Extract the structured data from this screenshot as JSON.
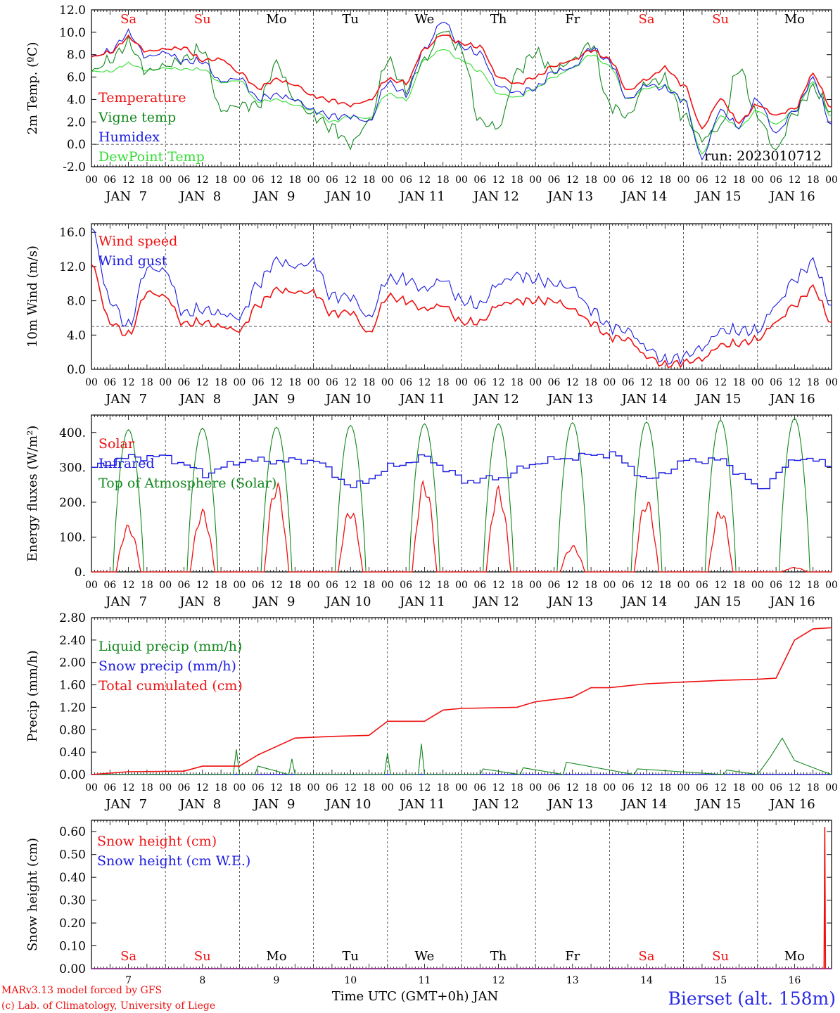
{
  "run_label": "run: 2023010712",
  "footer": {
    "model_line": "MARv3.13 model forced by GFS",
    "credit_line": "(c) Lab. of Climatology, University of Liege",
    "time_label": "Time UTC (GMT+0h) JAN",
    "station": "Bierset (alt. 158m)"
  },
  "colors": {
    "red": "#ee1111",
    "dark_green": "#11881c",
    "blue": "#1a1ae0",
    "light_green": "#33dd33",
    "weekend": "#ee1111",
    "weekday": "#000000"
  },
  "days": [
    "Sa",
    "Su",
    "Mo",
    "Tu",
    "We",
    "Th",
    "Fr",
    "Sa",
    "Su",
    "Mo"
  ],
  "weekend_flags": [
    true,
    true,
    false,
    false,
    false,
    false,
    false,
    true,
    true,
    false
  ],
  "date_labels": [
    "JAN  7",
    "JAN  8",
    "JAN  9",
    "JAN 10",
    "JAN 11",
    "JAN 12",
    "JAN 13",
    "JAN 14",
    "JAN 15",
    "JAN 16"
  ],
  "day_numbers": [
    "7",
    "8",
    "9",
    "10",
    "11",
    "12",
    "13",
    "14",
    "15",
    "16"
  ],
  "hour_ticks": [
    "00",
    "06",
    "12",
    "18"
  ],
  "chart_data": [
    {
      "type": "line",
      "ylabel": "2m Temp. (ºC)",
      "ylim": [
        -2,
        12
      ],
      "yticks": [
        "-2.0",
        "0.0",
        "2.0",
        "4.0",
        "6.0",
        "8.0",
        "10.0",
        "12.0"
      ],
      "reference_line": 0,
      "x_hours": [
        0,
        6,
        12,
        18,
        24,
        30,
        36,
        42,
        48,
        54,
        60,
        66,
        72,
        78,
        84,
        90,
        96,
        102,
        108,
        114,
        120,
        126,
        132,
        138,
        144,
        150,
        156,
        162,
        168,
        174,
        180,
        186,
        192,
        198,
        204,
        210,
        216,
        222,
        228,
        234,
        240
      ],
      "series": [
        {
          "name": "Temperature",
          "color": "red",
          "values": [
            7.8,
            8.2,
            9.5,
            8.3,
            8.5,
            8.6,
            7.5,
            7.6,
            6.4,
            5.0,
            5.8,
            5.3,
            4.3,
            3.9,
            3.5,
            3.9,
            5.8,
            5.5,
            8.5,
            9.8,
            9.0,
            8.7,
            6.0,
            5.4,
            6.0,
            7.0,
            7.5,
            8.4,
            7.6,
            4.8,
            5.8,
            6.8,
            5.3,
            1.5,
            4.0,
            2.0,
            3.5,
            2.6,
            3.2,
            6.2,
            3.3
          ]
        },
        {
          "name": "Vigne temp",
          "color": "dark_green",
          "values": [
            6.5,
            7.5,
            9.0,
            6.5,
            7.0,
            7.6,
            8.5,
            3.0,
            3.5,
            3.5,
            7.2,
            4.0,
            2.5,
            1.5,
            0.0,
            2.0,
            7.5,
            5.0,
            7.5,
            10.2,
            8.4,
            2.0,
            1.5,
            6.5,
            8.2,
            6.5,
            7.5,
            9.0,
            3.5,
            2.5,
            5.5,
            5.8,
            2.5,
            0.5,
            1.5,
            6.8,
            2.5,
            -0.5,
            2.8,
            5.0,
            3.0
          ]
        },
        {
          "name": "Humidex",
          "color": "blue",
          "values": [
            7.8,
            8.3,
            9.9,
            7.8,
            8.2,
            7.4,
            7.4,
            5.6,
            5.9,
            4.1,
            4.4,
            4.0,
            3.0,
            2.5,
            2.5,
            2.0,
            5.5,
            4.5,
            8.5,
            11.0,
            8.7,
            8.1,
            5.2,
            4.6,
            5.0,
            6.5,
            6.8,
            8.6,
            7.4,
            4.0,
            5.3,
            5.0,
            4.0,
            -1.2,
            3.0,
            1.6,
            4.0,
            1.0,
            3.0,
            5.8,
            1.8
          ]
        },
        {
          "name": "DewPoint Temp",
          "color": "light_green",
          "values": [
            6.5,
            6.5,
            7.2,
            6.6,
            6.8,
            6.7,
            6.7,
            5.5,
            5.7,
            3.8,
            4.0,
            3.5,
            3.0,
            2.0,
            2.5,
            2.3,
            4.5,
            4.0,
            7.5,
            8.5,
            7.5,
            6.5,
            4.5,
            4.2,
            5.0,
            6.0,
            6.8,
            8.0,
            7.0,
            4.0,
            5.0,
            5.2,
            4.0,
            -0.8,
            2.5,
            1.5,
            3.0,
            1.8,
            3.0,
            5.5,
            2.5
          ]
        }
      ]
    },
    {
      "type": "line",
      "ylabel": "10m Wind (m/s)",
      "ylim": [
        0,
        17
      ],
      "yticks": [
        "0.0",
        "4.0",
        "8.0",
        "12.0",
        "16.0"
      ],
      "reference_line": 5,
      "x_hours": [
        0,
        6,
        12,
        18,
        24,
        30,
        36,
        42,
        48,
        54,
        60,
        66,
        72,
        78,
        84,
        90,
        96,
        102,
        108,
        114,
        120,
        126,
        132,
        138,
        144,
        150,
        156,
        162,
        168,
        174,
        180,
        186,
        192,
        198,
        204,
        210,
        216,
        222,
        228,
        234,
        240
      ],
      "series": [
        {
          "name": "Wind speed",
          "color": "red",
          "values": [
            12.2,
            5.5,
            4.0,
            9.0,
            8.5,
            5.3,
            5.5,
            5.0,
            4.5,
            7.5,
            9.3,
            9.0,
            9.0,
            6.5,
            6.7,
            4.2,
            8.5,
            8.0,
            7.0,
            7.5,
            5.5,
            5.5,
            7.5,
            8.0,
            8.0,
            8.0,
            7.0,
            5.5,
            3.8,
            3.5,
            1.5,
            0.5,
            0.8,
            1.2,
            2.8,
            3.0,
            3.5,
            5.5,
            7.5,
            9.5,
            5.5
          ]
        },
        {
          "name": "Wind gust",
          "color": "blue",
          "values": [
            16.5,
            8.0,
            5.0,
            11.8,
            11.5,
            6.5,
            7.0,
            6.5,
            6.0,
            10.0,
            12.7,
            12.0,
            12.5,
            8.5,
            8.5,
            6.0,
            10.5,
            10.5,
            9.3,
            10.5,
            8.0,
            7.5,
            10.0,
            11.0,
            10.5,
            10.0,
            9.5,
            7.0,
            5.0,
            4.5,
            2.5,
            1.0,
            1.5,
            2.5,
            4.5,
            4.5,
            4.5,
            7.5,
            10.5,
            12.5,
            7.5
          ]
        }
      ]
    },
    {
      "type": "line",
      "ylabel": "Energy fluxes (W/m²)",
      "ylim": [
        0,
        450
      ],
      "yticks": [
        "0.",
        "100.",
        "200.",
        "300.",
        "400."
      ],
      "solar_peaks": [
        125,
        165,
        240,
        170,
        245,
        225,
        70,
        195,
        170,
        12
      ],
      "toa_peaks": [
        408,
        412,
        415,
        420,
        425,
        425,
        428,
        430,
        435,
        440
      ],
      "infrared": {
        "x_hours": [
          0,
          12,
          24,
          36,
          48,
          60,
          72,
          84,
          96,
          108,
          120,
          132,
          144,
          156,
          168,
          180,
          192,
          204,
          216,
          228,
          240
        ],
        "values": [
          300,
          330,
          330,
          280,
          320,
          318,
          320,
          240,
          300,
          330,
          260,
          270,
          315,
          330,
          340,
          260,
          320,
          320,
          235,
          330,
          305
        ]
      },
      "series": [
        {
          "name": "Solar",
          "color": "red"
        },
        {
          "name": "Infrared",
          "color": "blue"
        },
        {
          "name": "Top of Atmosphere (Solar)",
          "color": "dark_green"
        }
      ]
    },
    {
      "type": "line",
      "ylabel": "Precip (mm/h)",
      "ylim": [
        0,
        2.8
      ],
      "yticks": [
        "0.00",
        "0.40",
        "0.80",
        "1.20",
        "1.60",
        "2.00",
        "2.40",
        "2.80"
      ],
      "cumulated": {
        "x_hours": [
          0,
          12,
          30,
          36,
          48,
          54,
          66,
          78,
          90,
          96,
          108,
          114,
          120,
          138,
          144,
          156,
          162,
          168,
          180,
          192,
          204,
          216,
          222,
          228,
          234,
          240
        ],
        "values": [
          0.0,
          0.05,
          0.06,
          0.15,
          0.15,
          0.35,
          0.65,
          0.68,
          0.7,
          0.95,
          0.95,
          1.15,
          1.18,
          1.2,
          1.3,
          1.38,
          1.55,
          1.55,
          1.62,
          1.65,
          1.68,
          1.7,
          1.72,
          2.4,
          2.6,
          2.62
        ]
      },
      "liquid": {
        "x_hours": [
          0,
          46,
          47,
          48,
          53,
          54,
          64,
          65,
          66,
          95,
          96,
          97,
          106,
          107,
          108,
          126,
          127,
          139,
          140,
          153,
          154,
          176,
          177,
          205,
          206,
          216,
          220,
          224,
          228,
          236,
          240
        ],
        "values": [
          0,
          0,
          0.45,
          0,
          0,
          0.15,
          0,
          0.28,
          0,
          0,
          0.38,
          0,
          0,
          0.55,
          0,
          0,
          0.1,
          0,
          0.12,
          0,
          0.22,
          0,
          0.1,
          0,
          0.08,
          0,
          0.3,
          0.65,
          0.25,
          0.08,
          0
        ]
      },
      "series": [
        {
          "name": "Liquid precip (mm/h)",
          "color": "dark_green"
        },
        {
          "name": "Snow precip (mm/h)",
          "color": "blue"
        },
        {
          "name": "Total cumulated (cm)",
          "color": "red"
        }
      ]
    },
    {
      "type": "line",
      "ylabel": "Snow height (cm)",
      "ylim": [
        0,
        0.65
      ],
      "yticks": [
        "0.00",
        "0.10",
        "0.20",
        "0.30",
        "0.40",
        "0.50",
        "0.60"
      ],
      "spike": {
        "x_hours": 237.8,
        "value": 0.62
      },
      "series": [
        {
          "name": "Snow height (cm)",
          "color": "red"
        },
        {
          "name": "Snow height (cm W.E.)",
          "color": "blue"
        }
      ]
    }
  ]
}
